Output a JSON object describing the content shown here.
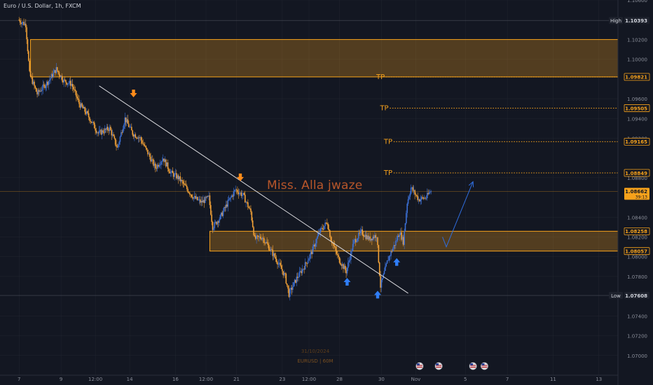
{
  "ticker": "Euro / U.S. Dollar, 1h, FXCM",
  "watermark": "Miss. Alla jwaze",
  "footer": {
    "date": "31/10/2024",
    "symbol": "EURUSD | 60M"
  },
  "colors": {
    "background": "#131722",
    "zone": "#f7a21b",
    "tp": "#f7a21b",
    "projection": "#2f6ee0",
    "arrow_down": "#ff8c1a",
    "arrow_up": "#2f7df6",
    "candle_orange": "#f0a037",
    "candle_blue": "#3b6fd4",
    "grid": "#2a2e39"
  },
  "chart_data": {
    "type": "line",
    "title": "",
    "xlabel": "",
    "ylabel": "",
    "symbol": "EURUSD",
    "timeframe": "1h",
    "ylim": [
      1.068,
      1.106
    ],
    "y_ticks": [
      1.106,
      1.102,
      1.1,
      1.096,
      1.094,
      1.092,
      1.088,
      1.084,
      1.082,
      1.08,
      1.078,
      1.074,
      1.072,
      1.07
    ],
    "x_ticks": [
      {
        "label": "7",
        "i": 0
      },
      {
        "label": "9",
        "i": 11
      },
      {
        "label": "12:00",
        "i": 20
      },
      {
        "label": "14",
        "i": 29
      },
      {
        "label": "16",
        "i": 41
      },
      {
        "label": "12:00",
        "i": 49
      },
      {
        "label": "21",
        "i": 57
      },
      {
        "label": "23",
        "i": 69
      },
      {
        "label": "12:00",
        "i": 76
      },
      {
        "label": "28",
        "i": 84
      },
      {
        "label": "30",
        "i": 95
      },
      {
        "label": "Nov",
        "i": 104
      },
      {
        "label": "5",
        "i": 117
      },
      {
        "label": "7",
        "i": 128
      },
      {
        "label": "11",
        "i": 140
      },
      {
        "label": "13",
        "i": 152
      }
    ],
    "x_index_range": [
      -5,
      157
    ],
    "price_path": [
      {
        "i": 0,
        "p": 1.104
      },
      {
        "i": 2,
        "p": 1.1035
      },
      {
        "i": 3,
        "p": 1.0985
      },
      {
        "i": 5,
        "p": 1.0965
      },
      {
        "i": 8,
        "p": 1.0978
      },
      {
        "i": 10,
        "p": 1.099
      },
      {
        "i": 12,
        "p": 1.0978
      },
      {
        "i": 14,
        "p": 1.0975
      },
      {
        "i": 16,
        "p": 1.0955
      },
      {
        "i": 18,
        "p": 1.0945
      },
      {
        "i": 21,
        "p": 1.0925
      },
      {
        "i": 24,
        "p": 1.093
      },
      {
        "i": 26,
        "p": 1.091
      },
      {
        "i": 28,
        "p": 1.094
      },
      {
        "i": 30,
        "p": 1.0925
      },
      {
        "i": 32,
        "p": 1.092
      },
      {
        "i": 34,
        "p": 1.0905
      },
      {
        "i": 36,
        "p": 1.089
      },
      {
        "i": 38,
        "p": 1.09
      },
      {
        "i": 40,
        "p": 1.0885
      },
      {
        "i": 42,
        "p": 1.088
      },
      {
        "i": 44,
        "p": 1.087
      },
      {
        "i": 46,
        "p": 1.086
      },
      {
        "i": 48,
        "p": 1.0855
      },
      {
        "i": 50,
        "p": 1.086
      },
      {
        "i": 51,
        "p": 1.083
      },
      {
        "i": 53,
        "p": 1.084
      },
      {
        "i": 55,
        "p": 1.0855
      },
      {
        "i": 57,
        "p": 1.0868
      },
      {
        "i": 59,
        "p": 1.0862
      },
      {
        "i": 61,
        "p": 1.0845
      },
      {
        "i": 62,
        "p": 1.0818
      },
      {
        "i": 64,
        "p": 1.082
      },
      {
        "i": 66,
        "p": 1.0808
      },
      {
        "i": 68,
        "p": 1.0795
      },
      {
        "i": 70,
        "p": 1.078
      },
      {
        "i": 71,
        "p": 1.0762
      },
      {
        "i": 73,
        "p": 1.0778
      },
      {
        "i": 75,
        "p": 1.079
      },
      {
        "i": 77,
        "p": 1.0805
      },
      {
        "i": 79,
        "p": 1.0825
      },
      {
        "i": 81,
        "p": 1.0835
      },
      {
        "i": 82,
        "p": 1.0818
      },
      {
        "i": 84,
        "p": 1.0798
      },
      {
        "i": 86,
        "p": 1.0785
      },
      {
        "i": 88,
        "p": 1.0815
      },
      {
        "i": 90,
        "p": 1.0825
      },
      {
        "i": 92,
        "p": 1.0818
      },
      {
        "i": 94,
        "p": 1.0822
      },
      {
        "i": 95,
        "p": 1.077
      },
      {
        "i": 97,
        "p": 1.0798
      },
      {
        "i": 99,
        "p": 1.0815
      },
      {
        "i": 100,
        "p": 1.0825
      },
      {
        "i": 101,
        "p": 1.0815
      },
      {
        "i": 102,
        "p": 1.0855
      },
      {
        "i": 103,
        "p": 1.087
      },
      {
        "i": 105,
        "p": 1.0858
      },
      {
        "i": 107,
        "p": 1.086
      },
      {
        "i": 108,
        "p": 1.0866
      }
    ],
    "price_labels": [
      {
        "label": "High",
        "value": "1.10393",
        "price": 1.10393,
        "style": "dark"
      },
      {
        "label": "",
        "value": "1.09821",
        "price": 1.09821,
        "style": "outline"
      },
      {
        "label": "",
        "value": "1.09505",
        "price": 1.09505,
        "style": "outline"
      },
      {
        "label": "",
        "value": "1.09165",
        "price": 1.09165,
        "style": "outline"
      },
      {
        "label": "",
        "value": "1.08849",
        "price": 1.08849,
        "style": "outline"
      },
      {
        "label": "",
        "value": "1.08662",
        "sub": "39:13",
        "price": 1.08662,
        "style": "filled"
      },
      {
        "label": "",
        "value": "1.08258",
        "price": 1.08258,
        "style": "outline"
      },
      {
        "label": "",
        "value": "1.08057",
        "price": 1.08057,
        "style": "outline"
      },
      {
        "label": "Low",
        "value": "1.07608",
        "price": 1.07608,
        "style": "dark"
      }
    ],
    "zones": [
      {
        "from_i": 3,
        "to_i": 157,
        "top": 1.102,
        "bottom": 1.09821
      },
      {
        "from_i": 50,
        "to_i": 157,
        "top": 1.08258,
        "bottom": 1.08057
      }
    ],
    "tp_levels": [
      {
        "label": "TP",
        "price": 1.09821,
        "from_i": 94
      },
      {
        "label": "TP",
        "price": 1.09505,
        "from_i": 95
      },
      {
        "label": "TP",
        "price": 1.09165,
        "from_i": 96
      },
      {
        "label": "TP",
        "price": 1.08849,
        "from_i": 96
      }
    ],
    "trendline": {
      "from": {
        "i": 21,
        "p": 1.0973
      },
      "to": {
        "i": 102,
        "p": 1.0763
      }
    },
    "projection": [
      {
        "i": 111,
        "p": 1.082
      },
      {
        "i": 112,
        "p": 1.081
      },
      {
        "i": 119,
        "p": 1.0876
      }
    ],
    "arrows_down": [
      {
        "i": 30,
        "p": 1.0965
      },
      {
        "i": 58,
        "p": 1.088
      }
    ],
    "arrows_up": [
      {
        "i": 86,
        "p": 1.0775
      },
      {
        "i": 94,
        "p": 1.0762
      },
      {
        "i": 99,
        "p": 1.0795
      }
    ],
    "event_markers": [
      {
        "i": 105
      },
      {
        "i": 110
      },
      {
        "i": 119
      },
      {
        "i": 122
      }
    ]
  }
}
